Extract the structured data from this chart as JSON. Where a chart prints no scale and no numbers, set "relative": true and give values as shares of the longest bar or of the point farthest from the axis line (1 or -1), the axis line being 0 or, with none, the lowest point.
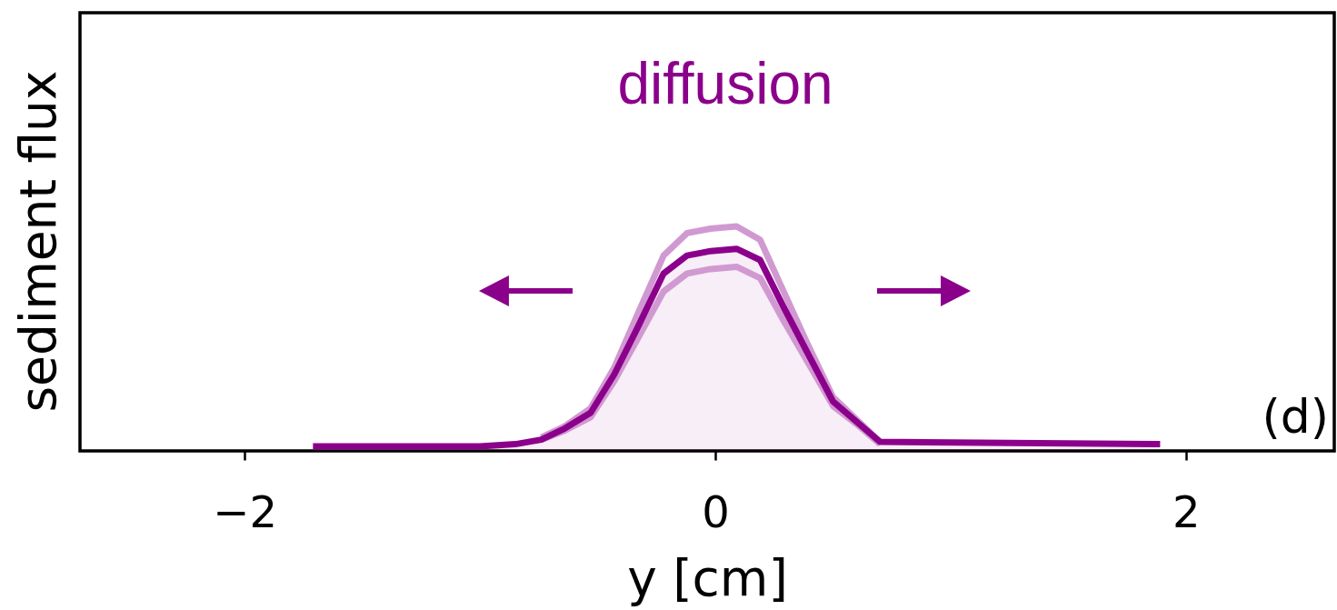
{
  "chart_data": {
    "type": "line",
    "xlabel": "y [cm]",
    "ylabel": "sediment flux",
    "annotations": [
      "diffusion",
      "(d)"
    ],
    "relative": true,
    "grid": false,
    "xlim": [
      -2.7,
      2.63
    ],
    "xticks": [
      -2,
      0,
      2
    ],
    "x": [
      -1.71,
      -1.0,
      -0.85,
      -0.74,
      -0.64,
      -0.53,
      -0.43,
      -0.33,
      -0.22,
      -0.12,
      -0.02,
      0.09,
      0.19,
      0.29,
      0.39,
      0.5,
      0.6,
      0.7,
      1.89
    ],
    "series": [
      {
        "color": "#d199d1",
        "values": [
          null,
          null,
          null,
          0.06,
          0.11,
          0.19,
          0.37,
          0.61,
          0.87,
          0.97,
          0.99,
          1,
          0.94,
          0.71,
          0.48,
          0.24,
          0.14,
          0.04,
          null
        ]
      },
      {
        "color": "#d199d1",
        "values": [
          null,
          null,
          null,
          0.05,
          0.09,
          0.15,
          0.31,
          0.5,
          0.71,
          0.79,
          0.81,
          0.82,
          0.77,
          0.58,
          0.4,
          0.2,
          0.12,
          0.03,
          null
        ]
      },
      {
        "type": "area",
        "color": "#8b008b",
        "values": [
          0.02,
          0.02,
          0.03,
          0.05,
          0.1,
          0.17,
          0.34,
          0.55,
          0.79,
          0.87,
          0.89,
          0.9,
          0.85,
          0.64,
          0.44,
          0.22,
          0.13,
          0.04,
          0.03
        ]
      }
    ]
  }
}
